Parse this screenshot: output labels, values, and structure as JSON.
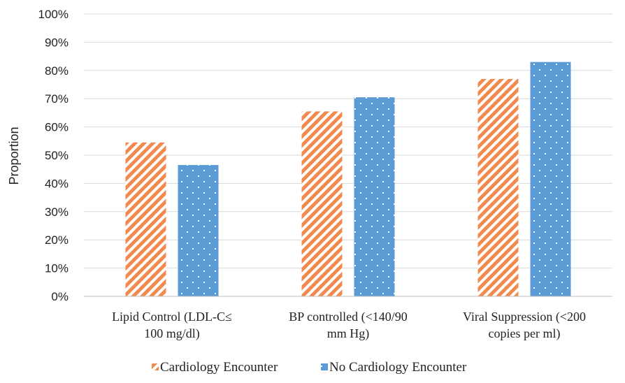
{
  "chart_data": {
    "type": "bar",
    "title": "",
    "xlabel": "",
    "ylabel": "Proportion",
    "ylim": [
      0,
      100
    ],
    "yticks": [
      0,
      10,
      20,
      30,
      40,
      50,
      60,
      70,
      80,
      90,
      100
    ],
    "ytick_suffix": "%",
    "grid": true,
    "legend_position": "bottom",
    "categories": [
      [
        "Lipid Control (LDL-C≤",
        "100 mg/dl)"
      ],
      [
        "BP controlled (<140/90",
        "mm Hg)"
      ],
      [
        "Viral Suppression (<200",
        "copies per ml)"
      ]
    ],
    "series": [
      {
        "name": "Cardiology Encounter",
        "values": [
          54.5,
          65.5,
          77
        ],
        "color": "#F28A4E",
        "pattern": "diagonal-stripes"
      },
      {
        "name": "No Cardiology Encounter",
        "values": [
          46.5,
          70.5,
          83
        ],
        "color": "#5B9BD5",
        "pattern": "dots"
      }
    ],
    "colors": {
      "grid": "#D9D9D9",
      "axis": "#BFBFBF"
    }
  }
}
